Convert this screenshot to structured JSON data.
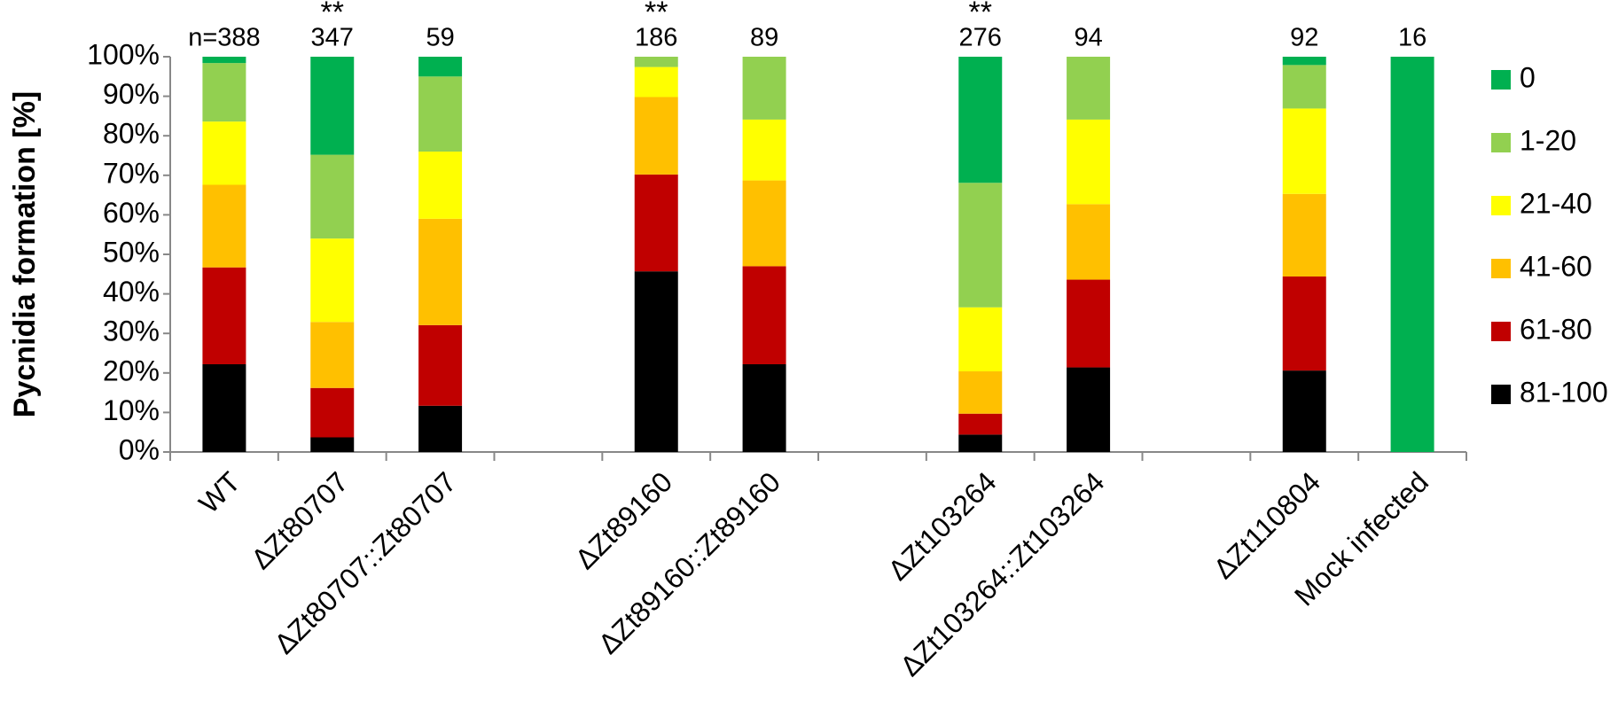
{
  "chart_data": {
    "type": "stacked_bar",
    "y_label": "Pycnidia formation [%]",
    "categories": [
      "WT",
      "ΔZt80707",
      "ΔZt80707::Zt80707",
      null,
      "ΔZt89160",
      "ΔZt89160::Zt89160",
      null,
      "ΔZt103264",
      "ΔZt103264::Zt103264",
      null,
      "ΔZt110804",
      "Mock infected"
    ],
    "n_labels": [
      "n=388",
      "347",
      "59",
      null,
      "186",
      "89",
      null,
      "276",
      "94",
      null,
      "92",
      "16"
    ],
    "significance": [
      null,
      "**",
      null,
      null,
      "**",
      null,
      null,
      "**",
      null,
      null,
      null,
      null
    ],
    "series": [
      {
        "name": "81-100",
        "color": "#000000",
        "values": [
          22.2,
          3.7,
          11.7,
          null,
          45.7,
          22.2,
          null,
          4.4,
          21.4,
          null,
          20.6,
          0
        ]
      },
      {
        "name": "61-80",
        "color": "#c00000",
        "values": [
          24.5,
          12.5,
          20.4,
          null,
          24.5,
          24.8,
          null,
          5.3,
          22.2,
          null,
          23.8,
          0
        ]
      },
      {
        "name": "41-60",
        "color": "#ffc000",
        "values": [
          20.9,
          16.7,
          26.9,
          null,
          19.6,
          21.7,
          null,
          10.7,
          19.1,
          null,
          20.9,
          0
        ]
      },
      {
        "name": "21-40",
        "color": "#ffff00",
        "values": [
          16,
          21.1,
          17,
          null,
          7.6,
          15.4,
          null,
          16.2,
          21.4,
          null,
          21.6,
          0
        ]
      },
      {
        "name": "1-20",
        "color": "#92d050",
        "values": [
          14.8,
          21.2,
          19,
          null,
          2.6,
          15.9,
          null,
          31.5,
          15.9,
          null,
          11,
          0
        ]
      },
      {
        "name": "0",
        "color": "#00b050",
        "values": [
          1.6,
          24.8,
          5,
          null,
          0,
          0,
          null,
          31.9,
          0,
          null,
          2.1,
          100
        ]
      }
    ],
    "ylim": [
      0,
      100
    ],
    "yticks": [
      {
        "value": 0,
        "label": "0%"
      },
      {
        "value": 10,
        "label": "10%"
      },
      {
        "value": 20,
        "label": "20%"
      },
      {
        "value": 30,
        "label": "30%"
      },
      {
        "value": 40,
        "label": "40%"
      },
      {
        "value": 50,
        "label": "50%"
      },
      {
        "value": 60,
        "label": "60%"
      },
      {
        "value": 70,
        "label": "70%"
      },
      {
        "value": 80,
        "label": "80%"
      },
      {
        "value": 90,
        "label": "90%"
      },
      {
        "value": 100,
        "label": "100%"
      }
    ],
    "legend": "right",
    "grid": false
  }
}
